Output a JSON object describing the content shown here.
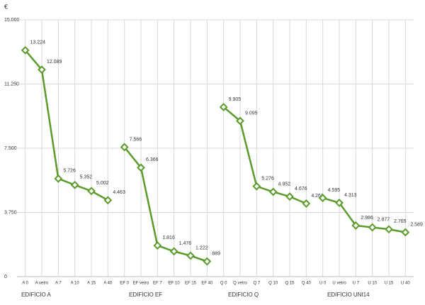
{
  "chart_data": {
    "type": "line",
    "y_unit": "€",
    "color": "#5b9b2b",
    "ylim": [
      0,
      15000
    ],
    "yticks": [
      0,
      {
        "value": 3750,
        "label": "3.750"
      },
      {
        "value": 7500,
        "label": "7.500"
      },
      {
        "value": 11250,
        "label": "11.250"
      },
      {
        "value": 15000,
        "label": "15.000"
      }
    ],
    "grid": true,
    "groups": [
      {
        "label": "EDIFICIO A",
        "categories": [
          "A 0",
          "A vetro",
          "A 7",
          "A 10",
          "A 15",
          "A 40"
        ],
        "values": [
          13224,
          12089,
          5726,
          5352,
          5002,
          4463
        ],
        "value_labels": [
          "13.224",
          "12.089",
          "5.726",
          "5.352",
          "5.002",
          "4.463"
        ]
      },
      {
        "label": "EDIFICIO EF",
        "categories": [
          "EF 0",
          "EF vetro",
          "EF 7",
          "EF 10",
          "EF 15",
          "EF 40"
        ],
        "values": [
          7566,
          6366,
          1816,
          1476,
          1222,
          889
        ],
        "value_labels": [
          "7.566",
          "6.366",
          "1.816",
          "1.476",
          "1.222",
          "889"
        ]
      },
      {
        "label": "EDIFICIO Q",
        "categories": [
          "Q 0",
          "Q vetro",
          "Q 7",
          "Q 10",
          "Q 15",
          "Q 40"
        ],
        "values": [
          9905,
          9095,
          5276,
          4952,
          4676,
          4268
        ],
        "value_labels": [
          "9.905",
          "9.095",
          "5.276",
          "4.952",
          "4.676",
          "4.268"
        ]
      },
      {
        "label": "EDIFICIO UNI14",
        "categories": [
          "U 0",
          "U vetro",
          "U 7",
          "U 10",
          "U 15",
          "U 40"
        ],
        "values": [
          4595,
          4313,
          2986,
          2877,
          2765,
          2589
        ],
        "value_labels": [
          "4.595",
          "4.313",
          "2.986",
          "2.877",
          "2.765",
          "2.589"
        ]
      }
    ]
  }
}
